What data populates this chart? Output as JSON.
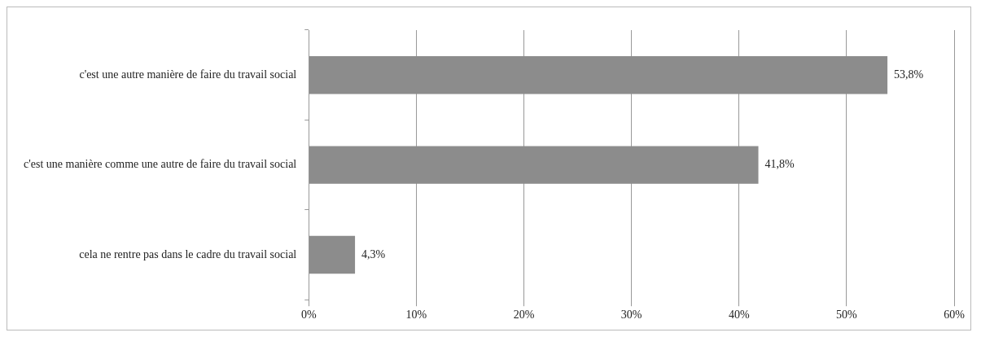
{
  "chart_data": {
    "type": "bar",
    "orientation": "horizontal",
    "categories": [
      "c'est une autre manière de faire du travail social",
      "c'est une manière comme une autre de faire du travail social",
      "cela ne rentre pas dans le cadre du travail social"
    ],
    "values": [
      53.8,
      41.8,
      4.3
    ],
    "color": "#8c8c8c",
    "value_labels": [
      "53,8%",
      "41,8%",
      "4,3%"
    ],
    "xlim": [
      0,
      60
    ],
    "xticks": [
      {
        "value": 0,
        "label": "0%"
      },
      {
        "value": 10,
        "label": "10%"
      },
      {
        "value": 20,
        "label": "20%"
      },
      {
        "value": 30,
        "label": "30%"
      },
      {
        "value": 40,
        "label": "40%"
      },
      {
        "value": 50,
        "label": "50%"
      },
      {
        "value": 60,
        "label": "60%"
      }
    ],
    "grid": "x",
    "legend": false
  }
}
